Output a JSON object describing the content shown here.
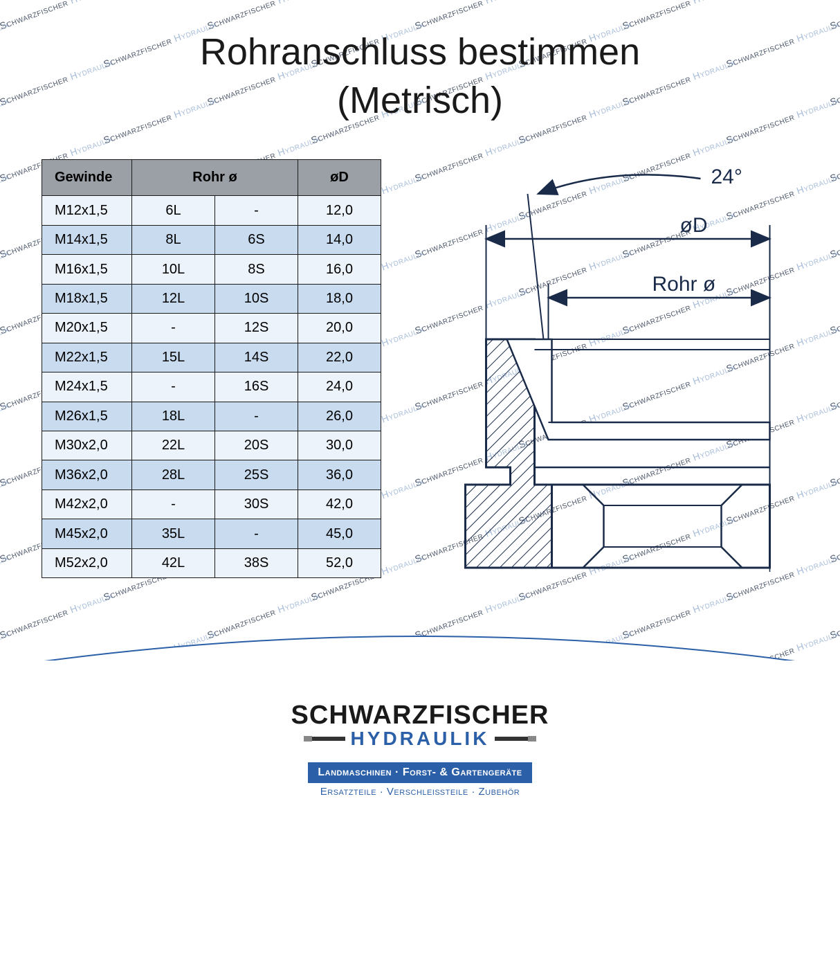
{
  "title_line1": "Rohranschluss bestimmen",
  "title_line2": "(Metrisch)",
  "watermark_brand": "Schwarzfischer",
  "watermark_sub": "Hydraulik",
  "table": {
    "headers": {
      "gewinde": "Gewinde",
      "rohr": "Rohr ø",
      "d": "øD"
    },
    "rows": [
      {
        "gewinde": "M12x1,5",
        "rohrL": "6L",
        "rohrS": "-",
        "d": "12,0"
      },
      {
        "gewinde": "M14x1,5",
        "rohrL": "8L",
        "rohrS": "6S",
        "d": "14,0"
      },
      {
        "gewinde": "M16x1,5",
        "rohrL": "10L",
        "rohrS": "8S",
        "d": "16,0"
      },
      {
        "gewinde": "M18x1,5",
        "rohrL": "12L",
        "rohrS": "10S",
        "d": "18,0"
      },
      {
        "gewinde": "M20x1,5",
        "rohrL": "-",
        "rohrS": "12S",
        "d": "20,0"
      },
      {
        "gewinde": "M22x1,5",
        "rohrL": "15L",
        "rohrS": "14S",
        "d": "22,0"
      },
      {
        "gewinde": "M24x1,5",
        "rohrL": "-",
        "rohrS": "16S",
        "d": "24,0"
      },
      {
        "gewinde": "M26x1,5",
        "rohrL": "18L",
        "rohrS": "-",
        "d": "26,0"
      },
      {
        "gewinde": "M30x2,0",
        "rohrL": "22L",
        "rohrS": "20S",
        "d": "30,0"
      },
      {
        "gewinde": "M36x2,0",
        "rohrL": "28L",
        "rohrS": "25S",
        "d": "36,0"
      },
      {
        "gewinde": "M42x2,0",
        "rohrL": "-",
        "rohrS": "30S",
        "d": "42,0"
      },
      {
        "gewinde": "M45x2,0",
        "rohrL": "35L",
        "rohrS": "-",
        "d": "45,0"
      },
      {
        "gewinde": "M52x2,0",
        "rohrL": "42L",
        "rohrS": "38S",
        "d": "52,0"
      }
    ],
    "header_bg": "#9aa0a6",
    "row_odd_bg": "#edf3fa",
    "row_even_bg": "#c8dbef",
    "border_color": "#1a1a1a"
  },
  "diagram": {
    "angle_label": "24°",
    "d_label": "øD",
    "rohr_label": "Rohr ø",
    "stroke": "#1a2b4a",
    "hatch_color": "#1a2b4a"
  },
  "footer": {
    "brand": "SCHWARZFISCHER",
    "brand_sub": "HYDRAULIK",
    "tagline_top": "Landmaschinen · Forst- & Gartengeräte",
    "tagline_bottom": "Ersatzteile · Verschleißteile · Zubehör",
    "brand_color": "#1a1a1a",
    "accent_color": "#2b5fa8"
  }
}
